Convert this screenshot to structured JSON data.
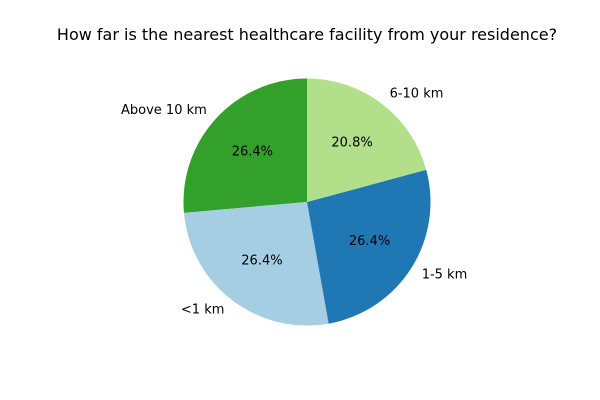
{
  "chart_data": {
    "type": "pie",
    "title": "How far is the nearest healthcare facility from your residence?",
    "categories": [
      "Above 10 km",
      "<1 km",
      "1-5 km",
      "6-10 km"
    ],
    "values": [
      26.4,
      26.4,
      26.4,
      20.8
    ],
    "value_labels": [
      "26.4%",
      "26.4%",
      "26.4%",
      "20.8%"
    ],
    "colors": [
      "#33a02c",
      "#a6cee3",
      "#1f78b4",
      "#b2df8a"
    ],
    "start_angle_deg": 90,
    "direction": "counterclockwise",
    "legend": "none"
  }
}
